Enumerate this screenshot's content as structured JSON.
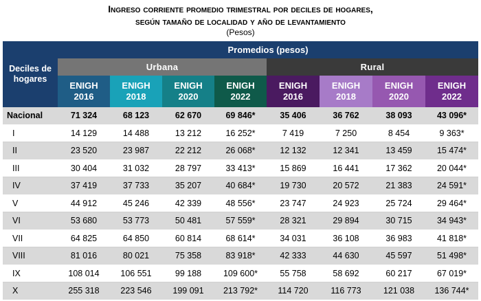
{
  "title_line1": "Ingreso corriente promedio trimestral por deciles de hogares,",
  "title_line2": "según tamaño de localidad y año de levantamiento",
  "subtitle": "(Pesos)",
  "header": {
    "corner": "Deciles de hogares",
    "promedios": "Promedios (pesos)",
    "urbana": "Urbana",
    "rural": "Rural",
    "years": [
      {
        "line1": "ENIGH",
        "line2": "2016"
      },
      {
        "line1": "ENIGH",
        "line2": "2018"
      },
      {
        "line1": "ENIGH",
        "line2": "2020"
      },
      {
        "line1": "ENIGH",
        "line2": "2022"
      },
      {
        "line1": "ENIGH",
        "line2": "2016"
      },
      {
        "line1": "ENIGH",
        "line2": "2018"
      },
      {
        "line1": "ENIGH",
        "line2": "2020"
      },
      {
        "line1": "ENIGH",
        "line2": "2022"
      }
    ]
  },
  "rows": [
    {
      "label": "Nacional",
      "values": [
        "71 324",
        "68 123",
        "62 670",
        "69 846*",
        "35 406",
        "36 762",
        "38 093",
        "43 096*"
      ]
    },
    {
      "label": "I",
      "values": [
        "14 129",
        "14 488",
        "13 212",
        "16 252*",
        "7 419",
        "7 250",
        "8 454",
        "9 363*"
      ]
    },
    {
      "label": "II",
      "values": [
        "23 520",
        "23 987",
        "22 212",
        "26 068*",
        "12 132",
        "12 341",
        "13 459",
        "15 474*"
      ]
    },
    {
      "label": "III",
      "values": [
        "30 404",
        "31 032",
        "28 797",
        "33 413*",
        "15 869",
        "16 441",
        "17 362",
        "20 044*"
      ]
    },
    {
      "label": "IV",
      "values": [
        "37 419",
        "37 733",
        "35 207",
        "40 684*",
        "19 730",
        "20 572",
        "21 383",
        "24 591*"
      ]
    },
    {
      "label": "V",
      "values": [
        "44 912",
        "45 246",
        "42 339",
        "48 556*",
        "23 747",
        "24 923",
        "25 724",
        "29 464*"
      ]
    },
    {
      "label": "VI",
      "values": [
        "53 680",
        "53 773",
        "50 481",
        "57 559*",
        "28 321",
        "29 894",
        "30 715",
        "34 943*"
      ]
    },
    {
      "label": "VII",
      "values": [
        "64 825",
        "64 850",
        "60 814",
        "68 614*",
        "34 031",
        "36 108",
        "36 983",
        "41 818*"
      ]
    },
    {
      "label": "VIII",
      "values": [
        "81 016",
        "80 021",
        "75 358",
        "83 918*",
        "42 333",
        "44 630",
        "45 597",
        "51 498*"
      ]
    },
    {
      "label": "IX",
      "values": [
        "108 014",
        "106 551",
        "99 188",
        "109 600*",
        "55 758",
        "58 692",
        "60 217",
        "67 019*"
      ]
    },
    {
      "label": "X",
      "values": [
        "255 318",
        "223 546",
        "199 091",
        "213 792*",
        "114 720",
        "116 773",
        "121 038",
        "136 744*"
      ]
    }
  ]
}
